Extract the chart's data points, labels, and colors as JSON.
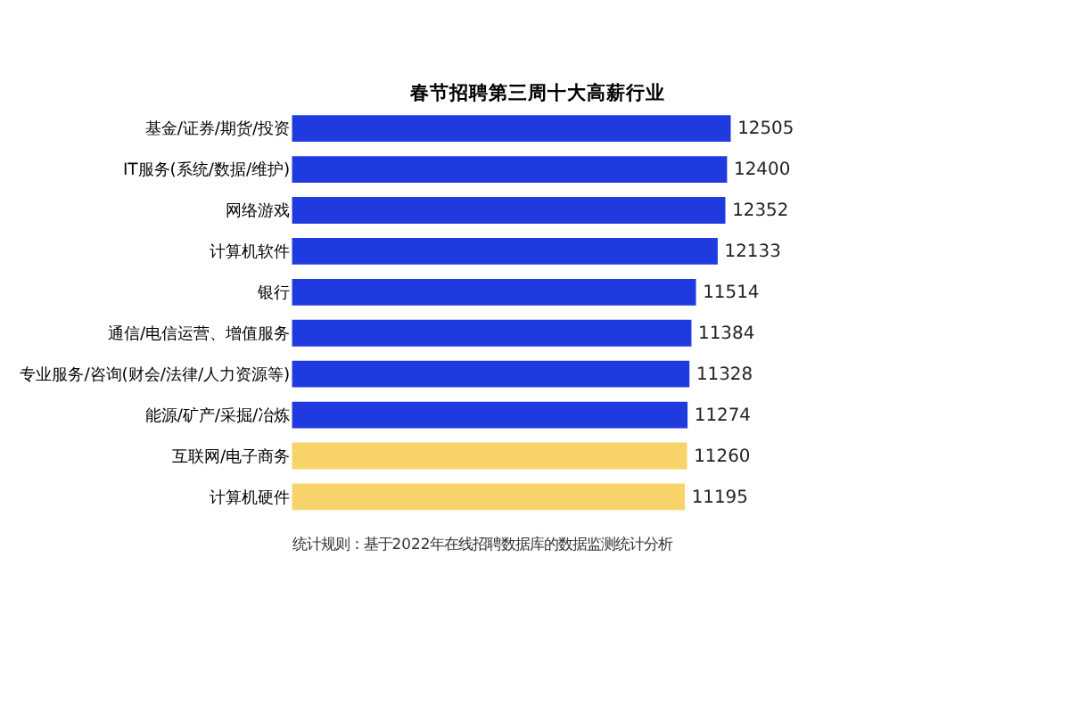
{
  "chart_data": {
    "type": "bar",
    "orientation": "horizontal",
    "title": "春节招聘第三周十大高薪行业",
    "categories": [
      "基金/证券/期货/投资",
      "IT服务(系统/数据/维护)",
      "网络游戏",
      "计算机软件",
      "银行",
      "通信/电信运营、增值服务",
      "专业服务/咨询(财会/法律/人力资源等)",
      "能源/矿产/采掘/冶炼",
      "互联网/电子商务",
      "计算机硬件"
    ],
    "values": [
      12505,
      12400,
      12352,
      12133,
      11514,
      11384,
      11328,
      11274,
      11260,
      11195
    ],
    "colors": [
      "#1f3be0",
      "#1f3be0",
      "#1f3be0",
      "#1f3be0",
      "#1f3be0",
      "#1f3be0",
      "#1f3be0",
      "#1f3be0",
      "#f7d36a",
      "#f7d36a"
    ],
    "data_labels": true,
    "annotations": [
      "统计规则：基于2022年在线招聘数据库的数据监测统计分析"
    ]
  }
}
